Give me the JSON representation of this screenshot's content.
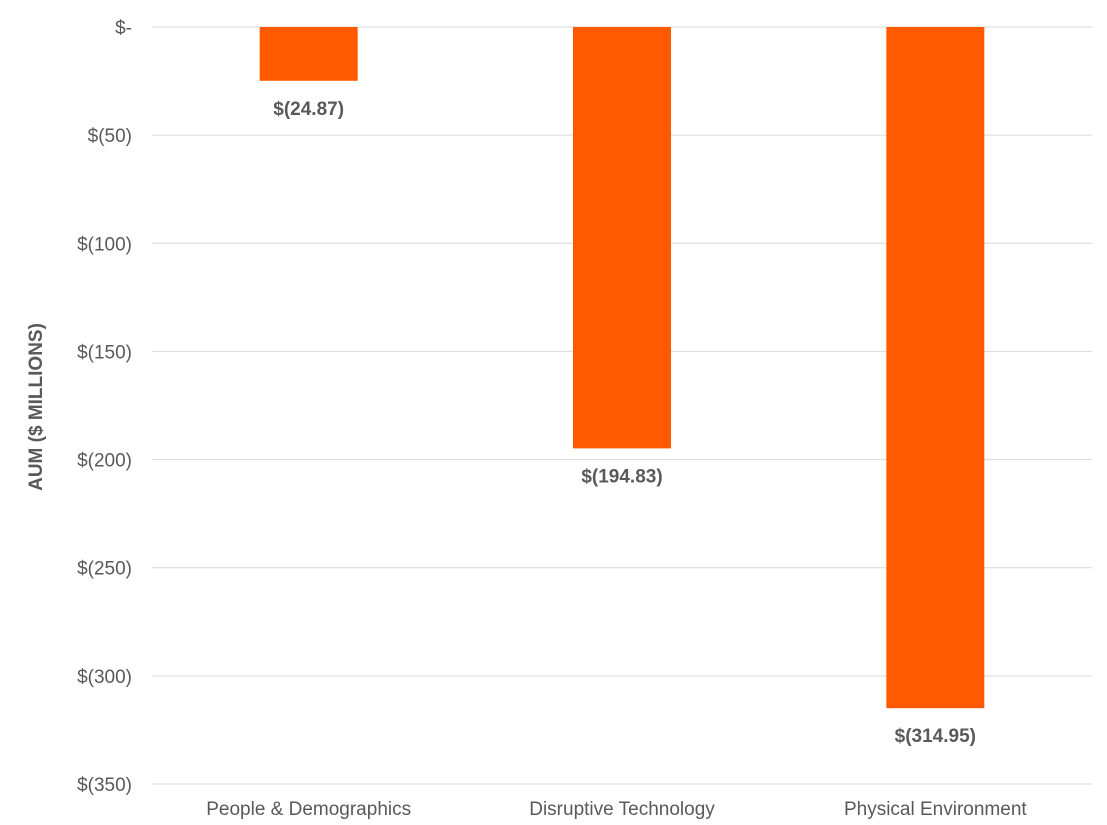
{
  "chart_data": {
    "type": "bar",
    "title": "",
    "xlabel": "",
    "ylabel": "AUM ($ MILLIONS)",
    "categories": [
      "People & Demographics",
      "Disruptive Technology",
      "Physical Environment"
    ],
    "values": [
      -24.87,
      -194.83,
      -314.95
    ],
    "data_labels": [
      "$(24.87)",
      "$(194.83)",
      "$(314.95)"
    ],
    "ylim": [
      -350,
      0
    ],
    "yticks": [
      0,
      -50,
      -100,
      -150,
      -200,
      -250,
      -300,
      -350
    ],
    "ytick_labels": [
      "$-",
      "$(50)",
      "$(100)",
      "$(150)",
      "$(200)",
      "$(250)",
      "$(300)",
      "$(350)"
    ],
    "grid": true,
    "legend": "none",
    "bar_color": "#ff5a00",
    "grid_color": "#d9d9d9",
    "text_color": "#595959"
  }
}
